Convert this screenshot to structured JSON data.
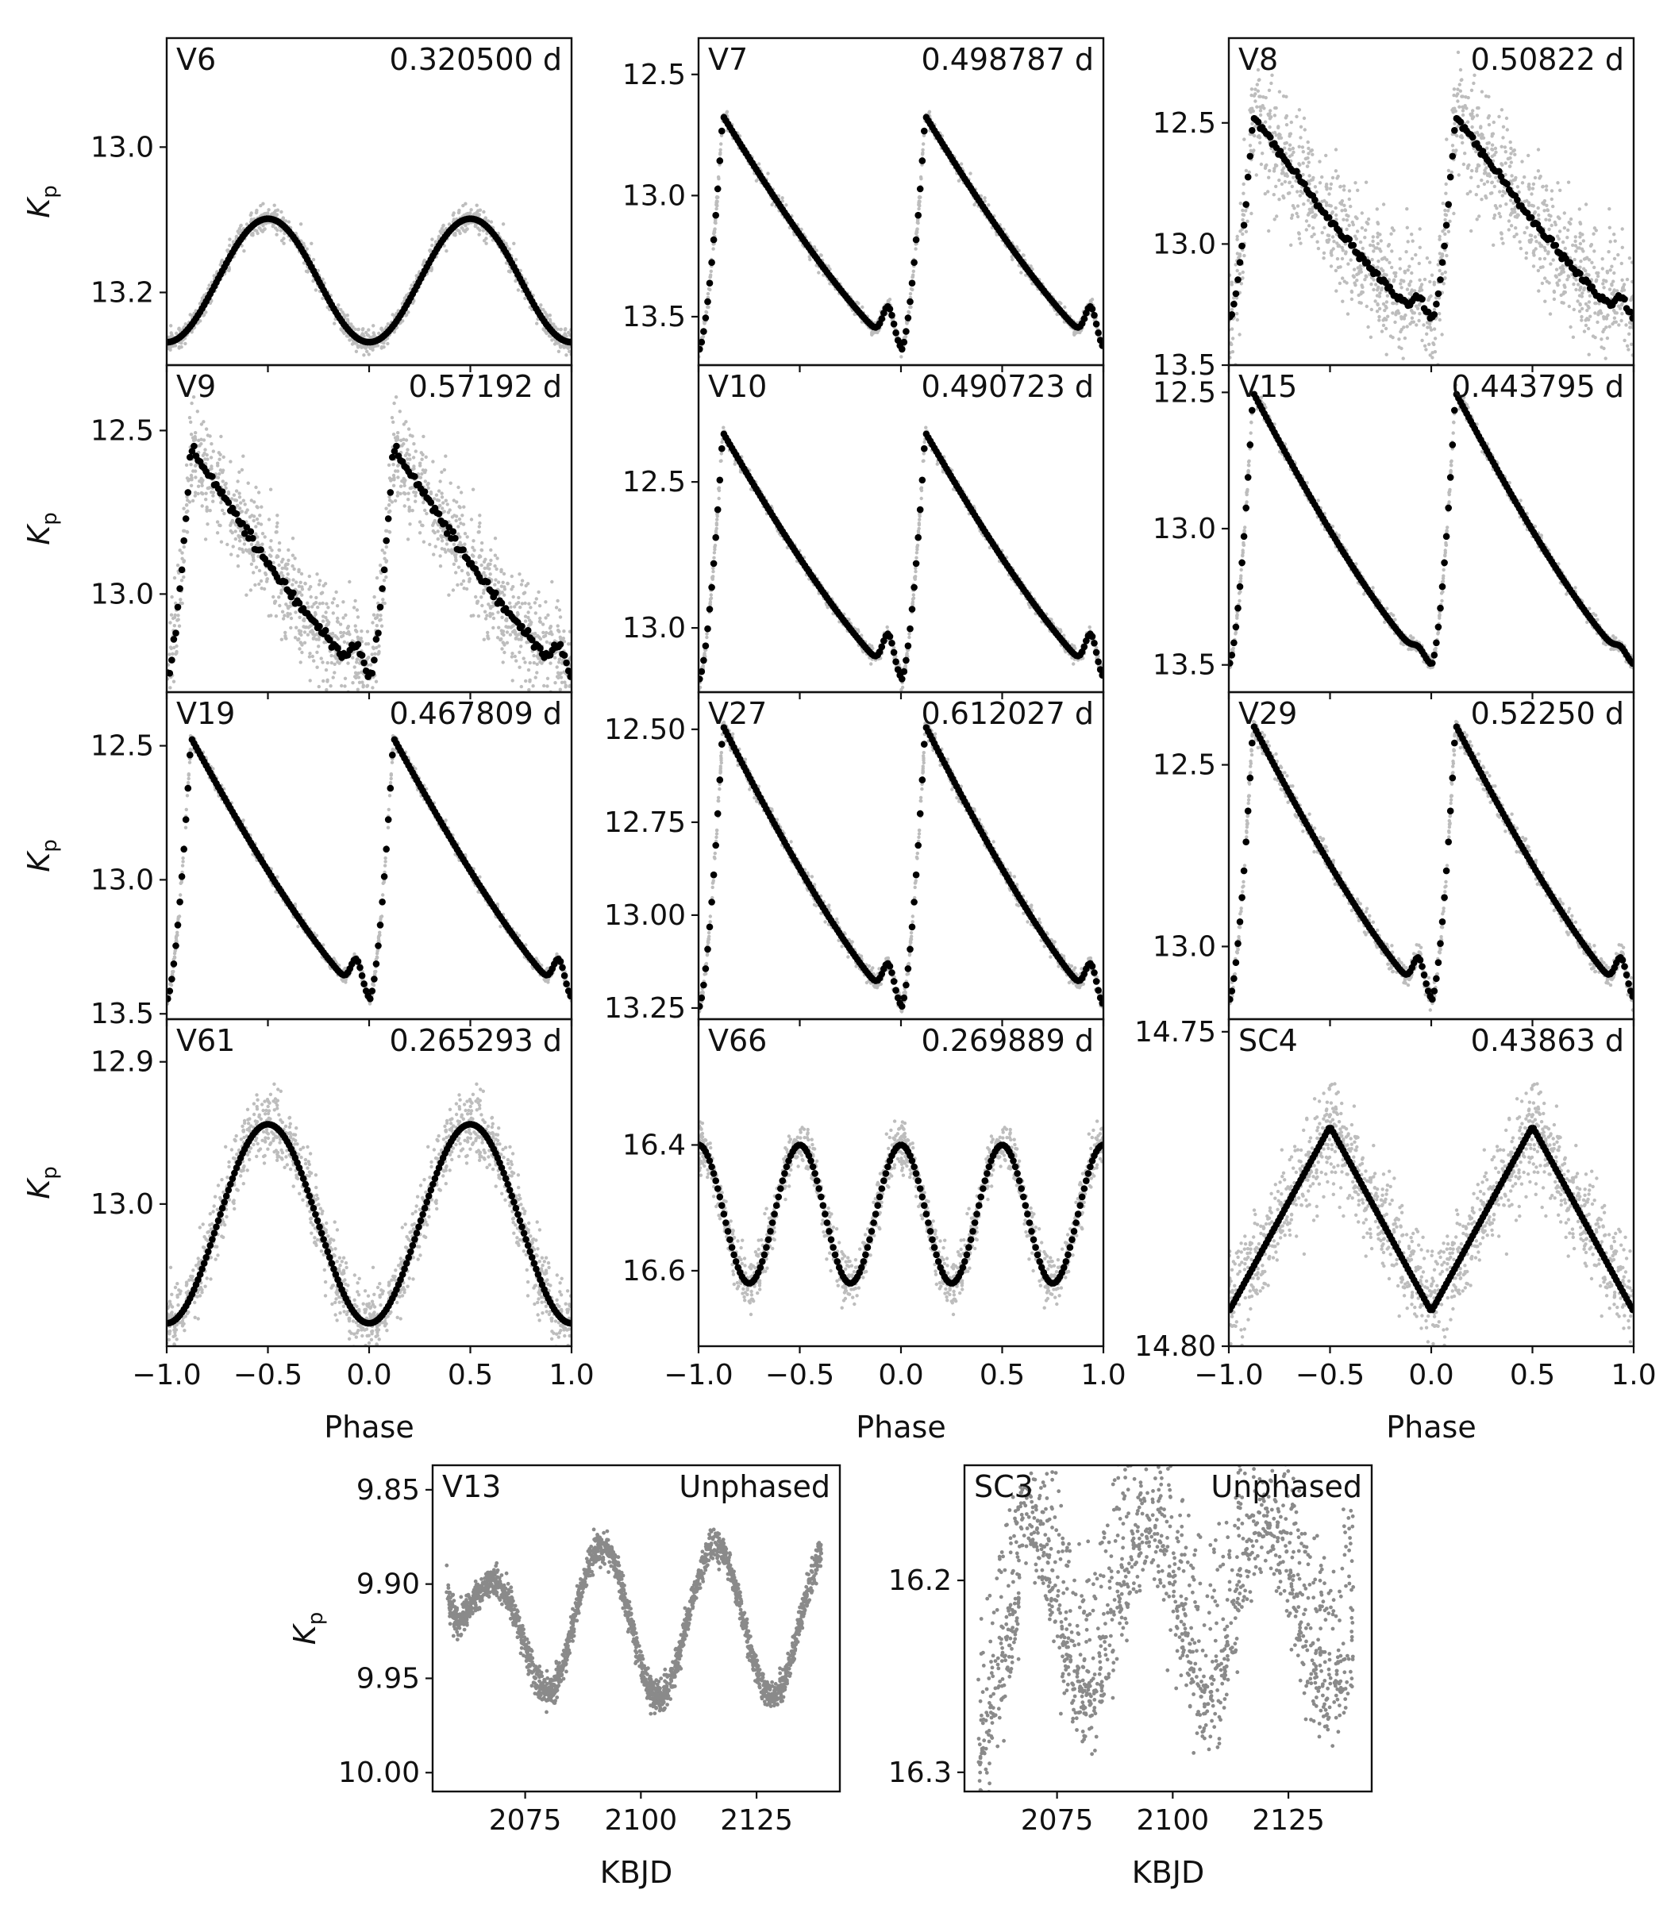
{
  "figure": {
    "description_axis": "Kp",
    "phase_label": "Phase",
    "time_label": "KBJD"
  },
  "chart_data": [
    {
      "type": "scatter",
      "name": "V6",
      "period": "0.320500 d",
      "model": "sine",
      "amp": 0.17,
      "min_phase": 0.0,
      "noise": 0.008,
      "ylim": [
        13.3,
        12.85
      ],
      "yticks": [
        13.0,
        13.2
      ],
      "ytick_labels": [
        "13.0",
        "13.2"
      ],
      "xlim": [
        -1,
        1
      ],
      "xticks": [
        -1,
        -0.5,
        0,
        0.5,
        1
      ]
    },
    {
      "type": "scatter",
      "name": "V7",
      "period": "0.498787 d",
      "model": "rrab",
      "maxmag": 12.67,
      "amp": 0.97,
      "bump": 0.05,
      "noise": 0.015,
      "ylim": [
        13.7,
        12.35
      ],
      "yticks": [
        12.5,
        13.0,
        13.5
      ],
      "ytick_labels": [
        "12.5",
        "13.0",
        "13.5"
      ],
      "xlim": [
        -1,
        1
      ],
      "xticks": [
        -1,
        -0.5,
        0,
        0.5,
        1
      ]
    },
    {
      "type": "scatter",
      "name": "V8",
      "period": "0.50822 d",
      "model": "rrab",
      "maxmag": 12.47,
      "amp": 0.85,
      "bump": 0.03,
      "noise": 0.12,
      "ylim": [
        13.5,
        12.15
      ],
      "yticks": [
        12.5,
        13.0,
        13.5
      ],
      "ytick_labels": [
        "12.5",
        "13.0",
        "13.5"
      ],
      "xlim": [
        -1,
        1
      ],
      "xticks": [
        -1,
        -0.5,
        0,
        0.5,
        1
      ]
    },
    {
      "type": "scatter",
      "name": "V9",
      "period": "0.57192 d",
      "model": "rrab",
      "maxmag": 12.55,
      "amp": 0.7,
      "bump": 0.03,
      "noise": 0.08,
      "ylim": [
        13.3,
        12.3
      ],
      "yticks": [
        12.5,
        13.0
      ],
      "ytick_labels": [
        "12.5",
        "13.0"
      ],
      "xlim": [
        -1,
        1
      ],
      "xticks": [
        -1,
        -0.5,
        0,
        0.5,
        1
      ]
    },
    {
      "type": "scatter",
      "name": "V10",
      "period": "0.490723 d",
      "model": "rrab",
      "maxmag": 12.33,
      "amp": 0.85,
      "bump": 0.05,
      "noise": 0.012,
      "ylim": [
        13.22,
        12.1
      ],
      "yticks": [
        12.5,
        13.0
      ],
      "ytick_labels": [
        "12.5",
        "13.0"
      ],
      "xlim": [
        -1,
        1
      ],
      "xticks": [
        -1,
        -0.5,
        0,
        0.5,
        1
      ]
    },
    {
      "type": "scatter",
      "name": "V15",
      "period": "0.443795 d",
      "model": "rrab",
      "maxmag": 12.5,
      "amp": 1.0,
      "bump": 0.01,
      "noise": 0.012,
      "ylim": [
        13.6,
        12.4
      ],
      "yticks": [
        12.5,
        13.0,
        13.5
      ],
      "ytick_labels": [
        "12.5",
        "13.0",
        "13.5"
      ],
      "xlim": [
        -1,
        1
      ],
      "xticks": [
        -1,
        -0.5,
        0,
        0.5,
        1
      ]
    },
    {
      "type": "scatter",
      "name": "V19",
      "period": "0.467809 d",
      "model": "rrab",
      "maxmag": 12.47,
      "amp": 0.98,
      "bump": 0.04,
      "noise": 0.012,
      "ylim": [
        13.52,
        12.3
      ],
      "yticks": [
        12.5,
        13.0,
        13.5
      ],
      "ytick_labels": [
        "12.5",
        "13.0",
        "13.5"
      ],
      "xlim": [
        -1,
        1
      ],
      "xticks": [
        -1,
        -0.5,
        0,
        0.5,
        1
      ]
    },
    {
      "type": "scatter",
      "name": "V27",
      "period": "0.612027 d",
      "model": "rrab",
      "maxmag": 12.49,
      "amp": 0.76,
      "bump": 0.04,
      "noise": 0.012,
      "ylim": [
        13.28,
        12.4
      ],
      "yticks": [
        12.5,
        12.75,
        13.0,
        13.25
      ],
      "ytick_labels": [
        "12.50",
        "12.75",
        "13.00",
        "13.25"
      ],
      "xlim": [
        -1,
        1
      ],
      "xticks": [
        -1,
        -0.5,
        0,
        0.5,
        1
      ]
    },
    {
      "type": "scatter",
      "name": "V29",
      "period": "0.52250 d",
      "model": "rrab",
      "maxmag": 12.39,
      "amp": 0.76,
      "bump": 0.04,
      "noise": 0.015,
      "ylim": [
        13.2,
        12.3
      ],
      "yticks": [
        12.5,
        13.0
      ],
      "ytick_labels": [
        "12.5",
        "13.0"
      ],
      "xlim": [
        -1,
        1
      ],
      "xticks": [
        -1,
        -0.5,
        0,
        0.5,
        1
      ]
    },
    {
      "type": "scatter",
      "name": "V61",
      "period": "0.265293 d",
      "model": "sine",
      "amp": 0.14,
      "min_phase": 0.0,
      "noise": 0.012,
      "ylim": [
        13.1,
        12.87
      ],
      "yticks": [
        12.9,
        13.0
      ],
      "ytick_labels": [
        "12.9",
        "13.0"
      ],
      "xlim": [
        -1,
        1
      ],
      "xticks": [
        -1,
        -0.5,
        0,
        0.5,
        1
      ]
    },
    {
      "type": "scatter",
      "name": "V66",
      "period": "0.269889 d",
      "model": "double",
      "amp": 0.22,
      "noise": 0.02,
      "ylim": [
        16.72,
        16.2
      ],
      "yticks": [
        16.4,
        16.6
      ],
      "ytick_labels": [
        "16.4",
        "16.6"
      ],
      "xlim": [
        -1,
        1
      ],
      "xticks": [
        -1,
        -0.5,
        0,
        0.5,
        1
      ]
    },
    {
      "type": "scatter",
      "name": "SC4",
      "period": "0.43863 d",
      "model": "tri",
      "amp": 0.0155,
      "noise": 0.004,
      "ylim": [
        14.8,
        14.748
      ],
      "yticks": [
        14.75,
        14.8
      ],
      "ytick_labels": [
        "14.75",
        "14.80"
      ],
      "xlim": [
        -1,
        1
      ],
      "xticks": [
        -1,
        -0.5,
        0,
        0.5,
        1
      ]
    },
    {
      "type": "scatter",
      "name": "V13",
      "period": "Unphased",
      "model": "time_v13",
      "noise": 0.004,
      "ylim": [
        10.01,
        9.837
      ],
      "yticks": [
        9.85,
        9.9,
        9.95,
        10.0
      ],
      "ytick_labels": [
        "9.85",
        "9.90",
        "9.95",
        "10.00"
      ],
      "xlim": [
        2055,
        2143
      ],
      "xticks": [
        2075,
        2100,
        2125
      ],
      "xtick_labels": [
        "2075",
        "2100",
        "2125"
      ]
    },
    {
      "type": "scatter",
      "name": "SC3",
      "period": "Unphased",
      "model": "time_sc3",
      "noise": 0.014,
      "ylim": [
        16.31,
        16.14
      ],
      "yticks": [
        16.2,
        16.3
      ],
      "ytick_labels": [
        "16.2",
        "16.3"
      ],
      "xlim": [
        2055,
        2143
      ],
      "xticks": [
        2075,
        2100,
        2125
      ],
      "xtick_labels": [
        "2075",
        "2100",
        "2125"
      ]
    }
  ],
  "colors": {
    "raw": "#bdbdbd",
    "binned": "#000000",
    "unphased": "#8a8a8a",
    "frame": "#111111"
  }
}
